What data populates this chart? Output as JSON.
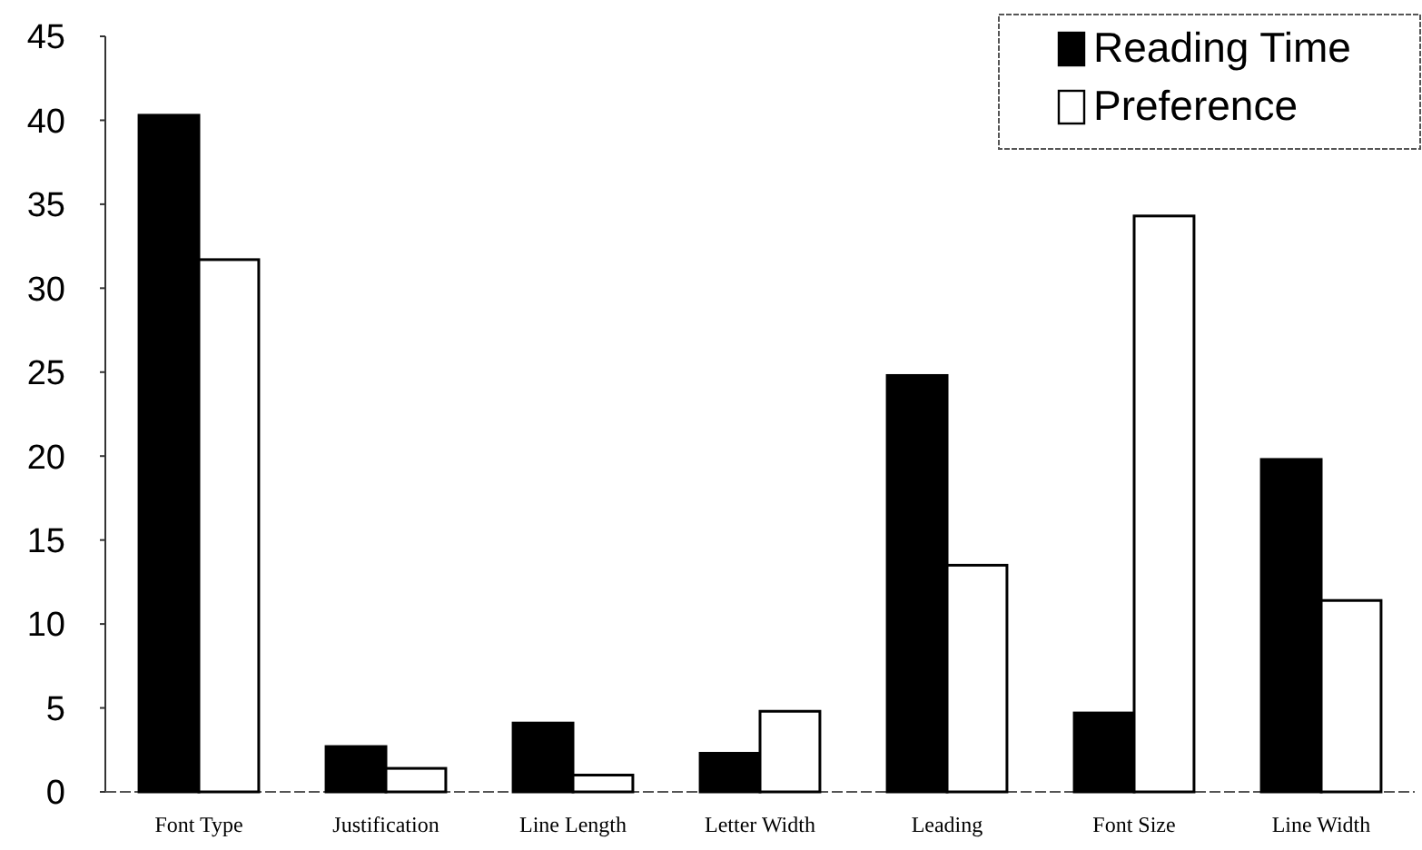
{
  "chart_data": {
    "type": "bar",
    "categories": [
      "Font Type",
      "Justification",
      "Line Length",
      "Letter Width",
      "Leading",
      "Font Size",
      "Line Width"
    ],
    "series": [
      {
        "name": "Reading Time",
        "color": "#000000",
        "values": [
          40.3,
          2.7,
          4.1,
          2.3,
          24.8,
          4.7,
          19.8
        ]
      },
      {
        "name": "Preference",
        "color": "#ffffff",
        "values": [
          31.7,
          1.4,
          1.0,
          4.8,
          13.5,
          34.3,
          11.4
        ]
      }
    ],
    "ylim": [
      0,
      45
    ],
    "yticks": [
      0,
      5,
      10,
      15,
      20,
      25,
      30,
      35,
      40,
      45
    ],
    "grid": false,
    "legend": "top right"
  }
}
